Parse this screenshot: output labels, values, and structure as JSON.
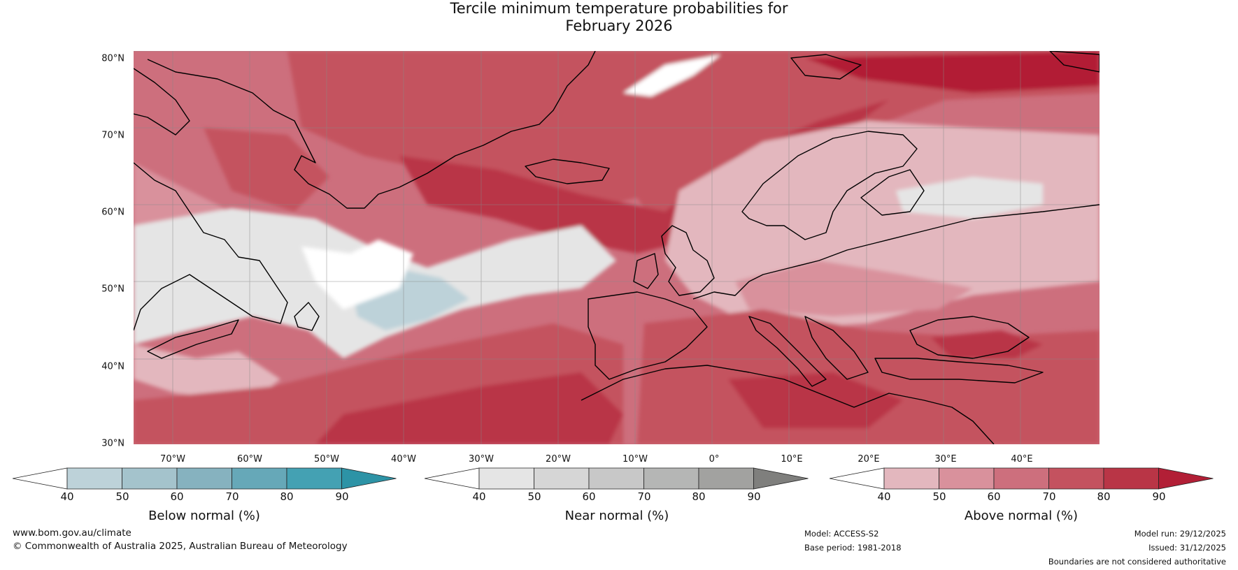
{
  "title_line1": "Tercile minimum temperature probabilities for",
  "title_line2": "February 2026",
  "map": {
    "extent": {
      "lon_min": -77,
      "lon_max": 50,
      "lat_min": 30,
      "lat_max": 80
    },
    "lat_labels": [
      "80°N",
      "70°N",
      "60°N",
      "50°N",
      "40°N",
      "30°N"
    ],
    "lon_labels": [
      "70°W",
      "60°W",
      "50°W",
      "40°W",
      "30°W",
      "20°W",
      "10°W",
      "0°",
      "10°E",
      "20°E",
      "30°E",
      "40°E"
    ]
  },
  "colorbars": [
    {
      "label": "Below normal (%)",
      "ticks": [
        "40",
        "50",
        "60",
        "70",
        "80",
        "90"
      ],
      "colors": [
        "#ffffff",
        "#bdd2d9",
        "#a4c3cc",
        "#86b2bf",
        "#66a8b8",
        "#44a1b3",
        "#2d93a6"
      ]
    },
    {
      "label": "Near normal (%)",
      "ticks": [
        "40",
        "50",
        "60",
        "70",
        "80",
        "90"
      ],
      "colors": [
        "#ffffff",
        "#e5e5e5",
        "#d6d6d6",
        "#c8c8c8",
        "#b5b6b5",
        "#a2a2a0",
        "#7f7f7d"
      ]
    },
    {
      "label": "Above normal (%)",
      "ticks": [
        "40",
        "50",
        "60",
        "70",
        "80",
        "90"
      ],
      "colors": [
        "#ffffff",
        "#e3b7be",
        "#d9919c",
        "#cd6f7d",
        "#c4525f",
        "#b93546",
        "#b21f36"
      ]
    }
  ],
  "footer": {
    "website": "www.bom.gov.au/climate",
    "copyright": "© Commonwealth of Australia 2025, Australian Bureau of Meteorology",
    "model": "Model: ACCESS-S2",
    "base_period": "Base period: 1981-2018",
    "model_run": "Model run: 29/12/2025",
    "issued": "Issued: 31/12/2025",
    "disclaimer": "Boundaries are not considered authoritative"
  }
}
